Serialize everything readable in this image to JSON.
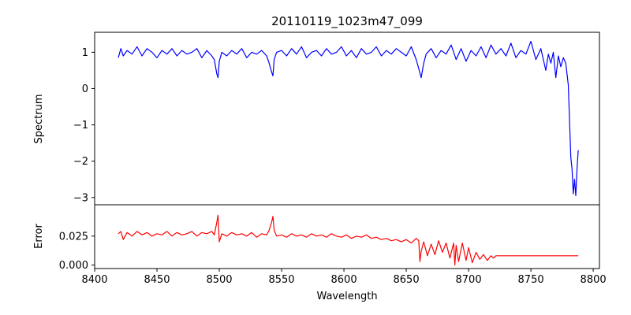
{
  "chart_data": [
    {
      "type": "line",
      "title": "20110119_1023m47_099",
      "xlabel": "",
      "ylabel": "Spectrum",
      "xlim": [
        8400,
        8805
      ],
      "ylim": [
        -3.2,
        1.55
      ],
      "xticks": [
        8400,
        8450,
        8500,
        8550,
        8600,
        8650,
        8700,
        8750,
        8800
      ],
      "yticks": [
        1,
        0,
        -1,
        -2,
        -3
      ],
      "ytick_labels": [
        "1",
        "0",
        "−1",
        "−2",
        "−3"
      ],
      "grid": false,
      "series": [
        {
          "color": "#0000ff",
          "x": [
            8419,
            8421,
            8423,
            8426,
            8430,
            8434,
            8438,
            8442,
            8446,
            8450,
            8454,
            8458,
            8462,
            8466,
            8470,
            8474,
            8478,
            8482,
            8486,
            8490,
            8494,
            8496,
            8498,
            8499,
            8500,
            8502,
            8506,
            8510,
            8514,
            8518,
            8522,
            8526,
            8530,
            8534,
            8538,
            8540,
            8542,
            8543,
            8544,
            8546,
            8550,
            8554,
            8558,
            8562,
            8566,
            8570,
            8574,
            8578,
            8582,
            8586,
            8590,
            8594,
            8598,
            8602,
            8606,
            8610,
            8614,
            8618,
            8622,
            8626,
            8630,
            8634,
            8638,
            8642,
            8646,
            8650,
            8654,
            8658,
            8660,
            8662,
            8664,
            8666,
            8670,
            8674,
            8678,
            8682,
            8686,
            8690,
            8694,
            8698,
            8702,
            8706,
            8710,
            8714,
            8718,
            8722,
            8726,
            8730,
            8734,
            8738,
            8742,
            8746,
            8750,
            8754,
            8758,
            8762,
            8764,
            8766,
            8768,
            8770,
            8772,
            8774,
            8776,
            8778,
            8779,
            8780,
            8781,
            8782,
            8783,
            8784,
            8785,
            8786,
            8787,
            8788
          ],
          "y": [
            0.85,
            1.1,
            0.9,
            1.05,
            0.95,
            1.15,
            0.9,
            1.1,
            1.0,
            0.85,
            1.05,
            0.95,
            1.1,
            0.9,
            1.05,
            0.95,
            1.0,
            1.1,
            0.85,
            1.05,
            0.9,
            0.8,
            0.4,
            0.3,
            0.75,
            1.0,
            0.9,
            1.05,
            0.95,
            1.1,
            0.85,
            1.0,
            0.95,
            1.05,
            0.9,
            0.7,
            0.45,
            0.35,
            0.8,
            1.0,
            1.05,
            0.9,
            1.1,
            0.95,
            1.15,
            0.85,
            1.0,
            1.05,
            0.9,
            1.1,
            0.95,
            1.0,
            1.15,
            0.9,
            1.05,
            0.85,
            1.1,
            0.95,
            1.0,
            1.15,
            0.9,
            1.05,
            0.95,
            1.1,
            1.0,
            0.9,
            1.15,
            0.8,
            0.55,
            0.3,
            0.7,
            0.95,
            1.1,
            0.85,
            1.05,
            0.95,
            1.2,
            0.8,
            1.1,
            0.75,
            1.05,
            0.9,
            1.15,
            0.85,
            1.2,
            0.95,
            1.1,
            0.9,
            1.25,
            0.85,
            1.05,
            0.95,
            1.3,
            0.8,
            1.1,
            0.5,
            0.95,
            0.7,
            1.0,
            0.3,
            0.9,
            0.6,
            0.85,
            0.7,
            0.4,
            0.1,
            -0.9,
            -1.9,
            -2.2,
            -2.9,
            -2.5,
            -2.95,
            -2.2,
            -1.7
          ]
        }
      ]
    },
    {
      "type": "line",
      "title": "",
      "xlabel": "Wavelength",
      "ylabel": "Error",
      "xlim": [
        8400,
        8805
      ],
      "ylim": [
        -0.003,
        0.052
      ],
      "xticks": [
        8400,
        8450,
        8500,
        8550,
        8600,
        8650,
        8700,
        8750,
        8800
      ],
      "yticks": [
        0.025,
        0.0
      ],
      "ytick_labels": [
        "0.025",
        "0.000"
      ],
      "grid": false,
      "series": [
        {
          "color": "#ff0000",
          "x": [
            8419,
            8421,
            8423,
            8426,
            8430,
            8434,
            8438,
            8442,
            8446,
            8450,
            8454,
            8458,
            8462,
            8466,
            8470,
            8474,
            8478,
            8482,
            8486,
            8490,
            8494,
            8496,
            8498,
            8499,
            8500,
            8502,
            8506,
            8510,
            8514,
            8518,
            8522,
            8526,
            8530,
            8534,
            8538,
            8540,
            8542,
            8543,
            8544,
            8546,
            8550,
            8554,
            8558,
            8562,
            8566,
            8570,
            8574,
            8578,
            8582,
            8586,
            8590,
            8594,
            8598,
            8602,
            8606,
            8610,
            8614,
            8618,
            8622,
            8626,
            8630,
            8634,
            8638,
            8642,
            8646,
            8650,
            8654,
            8658,
            8660,
            8661,
            8662,
            8664,
            8667,
            8670,
            8673,
            8676,
            8679,
            8682,
            8685,
            8688,
            8689,
            8690,
            8692,
            8695,
            8698,
            8700,
            8703,
            8706,
            8709,
            8712,
            8715,
            8718,
            8720,
            8722,
            8730,
            8740,
            8760,
            8788
          ],
          "y": [
            0.027,
            0.029,
            0.022,
            0.028,
            0.025,
            0.029,
            0.026,
            0.028,
            0.025,
            0.027,
            0.026,
            0.029,
            0.025,
            0.028,
            0.026,
            0.027,
            0.029,
            0.025,
            0.028,
            0.027,
            0.029,
            0.026,
            0.037,
            0.043,
            0.02,
            0.027,
            0.025,
            0.028,
            0.026,
            0.027,
            0.025,
            0.028,
            0.024,
            0.027,
            0.026,
            0.03,
            0.037,
            0.042,
            0.03,
            0.025,
            0.026,
            0.024,
            0.027,
            0.025,
            0.026,
            0.024,
            0.027,
            0.025,
            0.026,
            0.024,
            0.027,
            0.025,
            0.024,
            0.026,
            0.023,
            0.025,
            0.024,
            0.026,
            0.023,
            0.024,
            0.022,
            0.023,
            0.021,
            0.022,
            0.02,
            0.022,
            0.019,
            0.023,
            0.021,
            0.003,
            0.012,
            0.02,
            0.008,
            0.018,
            0.009,
            0.021,
            0.011,
            0.019,
            0.006,
            0.019,
            0.0,
            0.017,
            0.003,
            0.019,
            0.004,
            0.015,
            0.002,
            0.011,
            0.005,
            0.009,
            0.004,
            0.008,
            0.006,
            0.008,
            0.008,
            0.008,
            0.008,
            0.008
          ]
        }
      ]
    }
  ]
}
